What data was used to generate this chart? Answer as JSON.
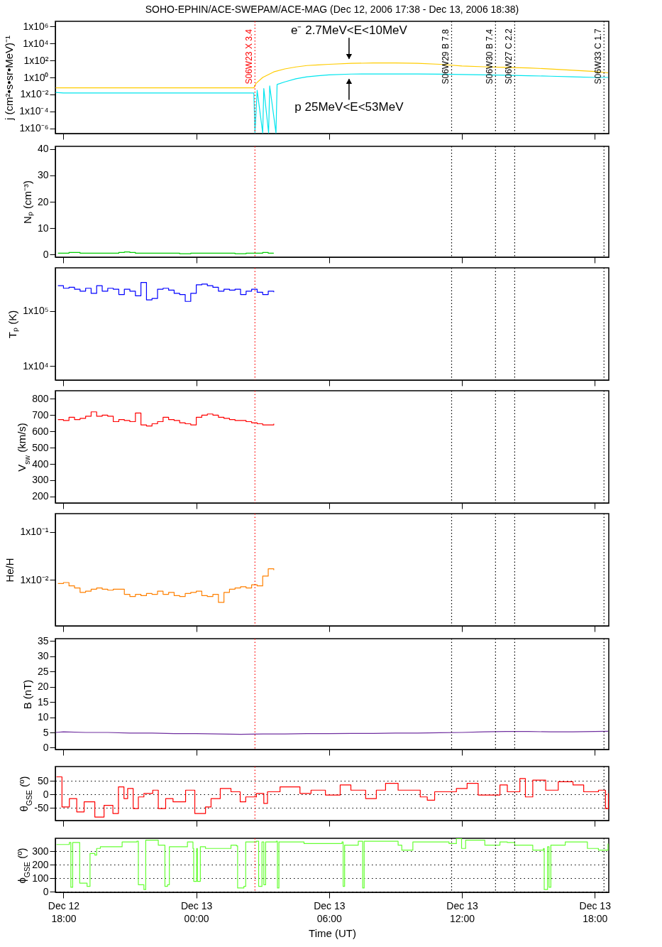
{
  "chart_data": [
    {
      "type": "line",
      "title": "SOHO-EPHIN/ACE-SWEPAM/ACE-MAG (Dec 12, 2006 17:38 - Dec 13, 2006 18:38)",
      "ylabel": "j (cm²•s•sr•MeV)⁻¹",
      "log": true,
      "tick_labels": "y",
      "xlim": [
        "2006-12-12T17:38",
        "2006-12-13T18:38"
      ],
      "xticks": [
        {
          "value": "2006-12-12T18:00",
          "label": null
        },
        {
          "value": "2006-12-13T00:00",
          "label": null
        },
        {
          "value": "2006-12-13T06:00",
          "label": null
        },
        {
          "value": "2006-12-13T12:00",
          "label": null
        },
        {
          "value": "2006-12-13T18:00",
          "label": null
        }
      ],
      "ylim": [
        2.5e-07,
        4000000
      ],
      "yticks": [
        {
          "value": 1e-06,
          "label": "1x10⁻⁶"
        },
        {
          "value": 0.0001,
          "label": "1x10⁻⁴"
        },
        {
          "value": 0.01,
          "label": "1x10⁻²"
        },
        {
          "value": 1,
          "label": "1x10⁰"
        },
        {
          "value": 100,
          "label": "1x10²"
        },
        {
          "value": 10000,
          "label": "1x10⁴"
        },
        {
          "value": 1000000,
          "label": "1x10⁶"
        }
      ],
      "series": [
        {
          "color": "#ffcc00",
          "x": [
            "2006-12-12T17:39",
            "2006-12-12T18:00",
            "2006-12-12T19:00",
            "2006-12-12T20:00",
            "2006-12-12T21:00",
            "2006-12-12T22:00",
            "2006-12-12T23:00",
            "2006-12-13T00:00",
            "2006-12-13T01:00",
            "2006-12-13T02:00",
            "2006-12-13T02:36",
            "2006-12-13T02:42",
            "2006-12-13T03:00",
            "2006-12-13T03:30",
            "2006-12-13T04:00",
            "2006-12-13T04:30",
            "2006-12-13T05:00",
            "2006-12-13T05:30",
            "2006-12-13T06:00",
            "2006-12-13T07:00",
            "2006-12-13T08:00",
            "2006-12-13T09:00",
            "2006-12-13T10:00",
            "2006-12-13T11:00",
            "2006-12-13T12:00",
            "2006-12-13T13:00",
            "2006-12-13T14:00",
            "2006-12-13T15:00",
            "2006-12-13T16:00",
            "2006-12-13T17:00",
            "2006-12-13T18:00",
            "2006-12-13T18:36"
          ],
          "values": [
            0.06,
            0.06,
            0.06,
            0.06,
            0.06,
            0.06,
            0.06,
            0.06,
            0.06,
            0.06,
            0.06,
            0.2,
            1,
            4.5,
            10,
            17,
            25,
            30,
            35,
            45,
            50,
            50,
            45,
            35,
            22,
            18,
            15,
            13,
            10,
            7,
            5,
            3.5
          ]
        },
        {
          "color": "#00e5ee",
          "x": [
            "2006-12-12T17:39",
            "2006-12-12T18:00",
            "2006-12-12T19:00",
            "2006-12-12T20:00",
            "2006-12-12T21:00",
            "2006-12-12T22:00",
            "2006-12-12T23:00",
            "2006-12-13T00:00",
            "2006-12-13T01:00",
            "2006-12-13T02:00",
            "2006-12-13T02:36",
            "2006-12-13T02:39",
            "2006-12-13T02:45",
            "2006-12-13T03:00",
            "2006-12-13T03:03",
            "2006-12-13T03:16",
            "2006-12-13T03:19",
            "2006-12-13T03:36",
            "2006-12-13T03:39",
            "2006-12-13T04:00",
            "2006-12-13T04:30",
            "2006-12-13T05:00",
            "2006-12-13T05:30",
            "2006-12-13T06:00",
            "2006-12-13T07:00",
            "2006-12-13T08:00",
            "2006-12-13T09:00",
            "2006-12-13T10:00",
            "2006-12-13T11:00",
            "2006-12-13T12:00",
            "2006-12-13T13:00",
            "2006-12-13T14:00",
            "2006-12-13T15:00",
            "2006-12-13T16:00",
            "2006-12-13T17:00",
            "2006-12-13T18:00",
            "2006-12-13T18:36"
          ],
          "values": [
            0.017,
            0.015,
            0.015,
            0.015,
            0.015,
            0.015,
            0.015,
            0.015,
            0.015,
            0.015,
            0.015,
            3e-07,
            0.03,
            3e-07,
            0.05,
            3e-07,
            0.1,
            3e-07,
            0.15,
            0.3,
            0.7,
            1.2,
            1.6,
            2,
            2.5,
            2.6,
            2.6,
            2.6,
            2.4,
            2.2,
            2,
            1.8,
            1.6,
            1.4,
            1.2,
            1,
            1
          ]
        }
      ],
      "ref_lines": [
        {
          "axis": "x",
          "value": "2006-12-13T02:39",
          "label": "S06W23 X 3.4",
          "color": "#ff0000",
          "line_style": "dotted"
        },
        {
          "axis": "x",
          "value": "2006-12-13T11:32",
          "label": "S06W29 B 7.8",
          "color": "#000000",
          "line_style": "dotted"
        },
        {
          "axis": "x",
          "value": "2006-12-13T13:31",
          "label": "S06W30 B 7.4",
          "color": "#000000",
          "line_style": "dotted"
        },
        {
          "axis": "x",
          "value": "2006-12-13T14:23",
          "label": "S06W27 C 2.2",
          "color": "#000000",
          "line_style": "dotted"
        },
        {
          "axis": "x",
          "value": "2006-12-13T18:25",
          "label": "S06W33 C 1.7",
          "color": "#000000",
          "line_style": "dotted"
        }
      ],
      "annotations": [
        {
          "text": "e⁻ 2.7MeV<E<10MeV",
          "x": "2006-12-13T06:54",
          "y": 45
        },
        {
          "text": "p 25MeV<E<53MeV",
          "x": "2006-12-13T06:54",
          "y": 2.3
        }
      ]
    },
    {
      "type": "step",
      "ylabel": "Nₚ (cm⁻³)",
      "tick_labels": "y",
      "xlim": [
        "2006-12-12T17:38",
        "2006-12-13T18:38"
      ],
      "xticks": [
        {
          "value": "2006-12-12T18:00",
          "label": null
        },
        {
          "value": "2006-12-13T00:00",
          "label": null
        },
        {
          "value": "2006-12-13T06:00",
          "label": null
        },
        {
          "value": "2006-12-13T12:00",
          "label": null
        },
        {
          "value": "2006-12-13T18:00",
          "label": null
        }
      ],
      "ylim": [
        -1,
        41
      ],
      "yticks": [
        0,
        10,
        20,
        30,
        40
      ],
      "series": [
        {
          "color": "#00cc00",
          "x": [
            "2006-12-12T17:45",
            "2006-12-12T18:00",
            "2006-12-12T18:15",
            "2006-12-12T18:30",
            "2006-12-12T18:45",
            "2006-12-12T19:00",
            "2006-12-12T19:15",
            "2006-12-12T19:30",
            "2006-12-12T19:45",
            "2006-12-12T20:00",
            "2006-12-12T20:15",
            "2006-12-12T20:30",
            "2006-12-12T20:45",
            "2006-12-12T21:00",
            "2006-12-12T21:15",
            "2006-12-12T21:30",
            "2006-12-12T21:45",
            "2006-12-12T22:00",
            "2006-12-12T22:15",
            "2006-12-12T22:30",
            "2006-12-12T22:45",
            "2006-12-12T23:00",
            "2006-12-12T23:15",
            "2006-12-12T23:30",
            "2006-12-12T23:45",
            "2006-12-13T00:00",
            "2006-12-13T00:15",
            "2006-12-13T00:30",
            "2006-12-13T00:45",
            "2006-12-13T01:00",
            "2006-12-13T01:15",
            "2006-12-13T01:30",
            "2006-12-13T01:45",
            "2006-12-13T02:00",
            "2006-12-13T02:15",
            "2006-12-13T02:30",
            "2006-12-13T02:45",
            "2006-12-13T03:00",
            "2006-12-13T03:15",
            "2006-12-13T03:30"
          ],
          "values": [
            0.5,
            0.5,
            0.8,
            0.8,
            0.5,
            0.5,
            0.5,
            0.5,
            0.5,
            0.5,
            0.5,
            0.8,
            1,
            0.8,
            0.5,
            0.5,
            0.5,
            0.5,
            0.5,
            0.5,
            0.5,
            0.5,
            0.3,
            0.3,
            0.5,
            0.5,
            0.5,
            0.5,
            0.5,
            0.5,
            0.5,
            0.5,
            0.3,
            0.3,
            0.5,
            0.5,
            0.5,
            0.8,
            0.5,
            0.5
          ]
        }
      ],
      "ref_lines": [
        {
          "axis": "x",
          "value": "2006-12-13T02:39",
          "color": "#ff0000",
          "line_style": "dotted"
        },
        {
          "axis": "x",
          "value": "2006-12-13T11:32",
          "color": "#000000",
          "line_style": "dotted"
        },
        {
          "axis": "x",
          "value": "2006-12-13T13:31",
          "color": "#000000",
          "line_style": "dotted"
        },
        {
          "axis": "x",
          "value": "2006-12-13T14:23",
          "color": "#000000",
          "line_style": "dotted"
        },
        {
          "axis": "x",
          "value": "2006-12-13T18:25",
          "color": "#000000",
          "line_style": "dotted"
        }
      ]
    },
    {
      "type": "step",
      "ylabel": "Tₚ (K)",
      "log": true,
      "tick_labels": "y",
      "xlim": [
        "2006-12-12T17:38",
        "2006-12-13T18:38"
      ],
      "xticks": [
        {
          "value": "2006-12-12T18:00",
          "label": null
        },
        {
          "value": "2006-12-13T00:00",
          "label": null
        },
        {
          "value": "2006-12-13T06:00",
          "label": null
        },
        {
          "value": "2006-12-13T12:00",
          "label": null
        },
        {
          "value": "2006-12-13T18:00",
          "label": null
        }
      ],
      "ylim": [
        5600,
        610000
      ],
      "yticks": [
        {
          "value": 10000,
          "label": "1x10⁴"
        },
        {
          "value": 100000,
          "label": "1x10⁵"
        }
      ],
      "series": [
        {
          "color": "#0000ff",
          "x": [
            "2006-12-12T17:45",
            "2006-12-12T18:00",
            "2006-12-12T18:15",
            "2006-12-12T18:30",
            "2006-12-12T18:45",
            "2006-12-12T19:00",
            "2006-12-12T19:15",
            "2006-12-12T19:30",
            "2006-12-12T19:45",
            "2006-12-12T20:00",
            "2006-12-12T20:15",
            "2006-12-12T20:30",
            "2006-12-12T20:45",
            "2006-12-12T21:00",
            "2006-12-12T21:15",
            "2006-12-12T21:30",
            "2006-12-12T21:45",
            "2006-12-12T22:00",
            "2006-12-12T22:15",
            "2006-12-12T22:30",
            "2006-12-12T22:45",
            "2006-12-12T23:00",
            "2006-12-12T23:15",
            "2006-12-12T23:30",
            "2006-12-12T23:45",
            "2006-12-13T00:00",
            "2006-12-13T00:15",
            "2006-12-13T00:30",
            "2006-12-13T00:45",
            "2006-12-13T01:00",
            "2006-12-13T01:15",
            "2006-12-13T01:30",
            "2006-12-13T01:45",
            "2006-12-13T02:00",
            "2006-12-13T02:15",
            "2006-12-13T02:30",
            "2006-12-13T02:45",
            "2006-12-13T03:00",
            "2006-12-13T03:15",
            "2006-12-13T03:30"
          ],
          "values": [
            290000,
            260000,
            270000,
            250000,
            230000,
            260000,
            210000,
            290000,
            230000,
            260000,
            250000,
            200000,
            250000,
            230000,
            190000,
            330000,
            160000,
            170000,
            250000,
            260000,
            240000,
            210000,
            200000,
            150000,
            210000,
            300000,
            310000,
            290000,
            270000,
            230000,
            250000,
            240000,
            250000,
            200000,
            230000,
            250000,
            220000,
            200000,
            230000,
            220000
          ]
        }
      ],
      "ref_lines": [
        {
          "axis": "x",
          "value": "2006-12-13T02:39",
          "color": "#ff0000",
          "line_style": "dotted"
        },
        {
          "axis": "x",
          "value": "2006-12-13T11:32",
          "color": "#000000",
          "line_style": "dotted"
        },
        {
          "axis": "x",
          "value": "2006-12-13T13:31",
          "color": "#000000",
          "line_style": "dotted"
        },
        {
          "axis": "x",
          "value": "2006-12-13T14:23",
          "color": "#000000",
          "line_style": "dotted"
        },
        {
          "axis": "x",
          "value": "2006-12-13T18:25",
          "color": "#000000",
          "line_style": "dotted"
        }
      ]
    },
    {
      "type": "step",
      "ylabel": "V$_{sw}$ (km/s)",
      "tick_labels": "y",
      "xlim": [
        "2006-12-12T17:38",
        "2006-12-13T18:38"
      ],
      "xticks": [
        {
          "value": "2006-12-12T18:00",
          "label": null
        },
        {
          "value": "2006-12-13T00:00",
          "label": null
        },
        {
          "value": "2006-12-13T06:00",
          "label": null
        },
        {
          "value": "2006-12-13T12:00",
          "label": null
        },
        {
          "value": "2006-12-13T18:00",
          "label": null
        }
      ],
      "ylim": [
        160,
        850
      ],
      "yticks": [
        200,
        300,
        400,
        500,
        600,
        700,
        800
      ],
      "series": [
        {
          "color": "#ff0000",
          "x": [
            "2006-12-12T17:45",
            "2006-12-12T18:00",
            "2006-12-12T18:15",
            "2006-12-12T18:30",
            "2006-12-12T18:45",
            "2006-12-12T19:00",
            "2006-12-12T19:15",
            "2006-12-12T19:30",
            "2006-12-12T19:45",
            "2006-12-12T20:00",
            "2006-12-12T20:15",
            "2006-12-12T20:30",
            "2006-12-12T20:45",
            "2006-12-12T21:00",
            "2006-12-12T21:15",
            "2006-12-12T21:30",
            "2006-12-12T21:45",
            "2006-12-12T22:00",
            "2006-12-12T22:15",
            "2006-12-12T22:30",
            "2006-12-12T22:45",
            "2006-12-12T23:00",
            "2006-12-12T23:15",
            "2006-12-12T23:30",
            "2006-12-12T23:45",
            "2006-12-13T00:00",
            "2006-12-13T00:15",
            "2006-12-13T00:30",
            "2006-12-13T00:45",
            "2006-12-13T01:00",
            "2006-12-13T01:15",
            "2006-12-13T01:30",
            "2006-12-13T01:45",
            "2006-12-13T02:00",
            "2006-12-13T02:15",
            "2006-12-13T02:30",
            "2006-12-13T02:45",
            "2006-12-13T03:00",
            "2006-12-13T03:15",
            "2006-12-13T03:30"
          ],
          "values": [
            673,
            667,
            687,
            673,
            680,
            693,
            720,
            693,
            700,
            693,
            660,
            673,
            667,
            660,
            713,
            640,
            633,
            647,
            660,
            687,
            673,
            667,
            653,
            647,
            640,
            687,
            700,
            707,
            700,
            687,
            680,
            673,
            667,
            667,
            660,
            653,
            647,
            640,
            640,
            647
          ]
        }
      ],
      "ref_lines": [
        {
          "axis": "x",
          "value": "2006-12-13T02:39",
          "color": "#ff0000",
          "line_style": "dotted"
        },
        {
          "axis": "x",
          "value": "2006-12-13T11:32",
          "color": "#000000",
          "line_style": "dotted"
        },
        {
          "axis": "x",
          "value": "2006-12-13T13:31",
          "color": "#000000",
          "line_style": "dotted"
        },
        {
          "axis": "x",
          "value": "2006-12-13T14:23",
          "color": "#000000",
          "line_style": "dotted"
        },
        {
          "axis": "x",
          "value": "2006-12-13T18:25",
          "color": "#000000",
          "line_style": "dotted"
        }
      ]
    },
    {
      "type": "step",
      "ylabel": "He/H",
      "log": true,
      "tick_labels": "y",
      "xlim": [
        "2006-12-12T17:38",
        "2006-12-13T18:38"
      ],
      "xticks": [
        {
          "value": "2006-12-12T18:00",
          "label": null
        },
        {
          "value": "2006-12-13T00:00",
          "label": null
        },
        {
          "value": "2006-12-13T06:00",
          "label": null
        },
        {
          "value": "2006-12-13T12:00",
          "label": null
        },
        {
          "value": "2006-12-13T18:00",
          "label": null
        }
      ],
      "ylim": [
        0.0011,
        0.24
      ],
      "yticks": [
        {
          "value": 0.01,
          "label": "1x10⁻²"
        },
        {
          "value": 0.1,
          "label": "1x10⁻¹"
        }
      ],
      "series": [
        {
          "color": "#ff8000",
          "x": [
            "2006-12-12T17:45",
            "2006-12-12T18:00",
            "2006-12-12T18:15",
            "2006-12-12T18:30",
            "2006-12-12T18:45",
            "2006-12-12T19:00",
            "2006-12-12T19:15",
            "2006-12-12T19:30",
            "2006-12-12T19:45",
            "2006-12-12T20:00",
            "2006-12-12T20:15",
            "2006-12-12T20:30",
            "2006-12-12T20:45",
            "2006-12-12T21:00",
            "2006-12-12T21:15",
            "2006-12-12T21:30",
            "2006-12-12T21:45",
            "2006-12-12T22:00",
            "2006-12-12T22:15",
            "2006-12-12T22:30",
            "2006-12-12T22:45",
            "2006-12-12T23:00",
            "2006-12-12T23:15",
            "2006-12-12T23:30",
            "2006-12-12T23:45",
            "2006-12-13T00:00",
            "2006-12-13T00:15",
            "2006-12-13T00:30",
            "2006-12-13T00:45",
            "2006-12-13T01:00",
            "2006-12-13T01:15",
            "2006-12-13T01:30",
            "2006-12-13T01:45",
            "2006-12-13T02:00",
            "2006-12-13T02:15",
            "2006-12-13T02:30",
            "2006-12-13T02:45",
            "2006-12-13T03:00",
            "2006-12-13T03:15",
            "2006-12-13T03:30"
          ],
          "values": [
            0.0084,
            0.0088,
            0.0075,
            0.0068,
            0.0055,
            0.0058,
            0.0064,
            0.0068,
            0.0064,
            0.0061,
            0.0064,
            0.0064,
            0.005,
            0.0045,
            0.005,
            0.0047,
            0.0052,
            0.005,
            0.0058,
            0.005,
            0.0055,
            0.0047,
            0.0045,
            0.0052,
            0.0055,
            0.0058,
            0.0047,
            0.0045,
            0.005,
            0.0034,
            0.0055,
            0.0064,
            0.0068,
            0.0072,
            0.0068,
            0.0079,
            0.0075,
            0.012,
            0.017,
            0.016
          ]
        }
      ],
      "ref_lines": [
        {
          "axis": "x",
          "value": "2006-12-13T02:39",
          "color": "#ff0000",
          "line_style": "dotted"
        },
        {
          "axis": "x",
          "value": "2006-12-13T11:32",
          "color": "#000000",
          "line_style": "dotted"
        },
        {
          "axis": "x",
          "value": "2006-12-13T13:31",
          "color": "#000000",
          "line_style": "dotted"
        },
        {
          "axis": "x",
          "value": "2006-12-13T14:23",
          "color": "#000000",
          "line_style": "dotted"
        },
        {
          "axis": "x",
          "value": "2006-12-13T18:25",
          "color": "#000000",
          "line_style": "dotted"
        }
      ]
    },
    {
      "type": "line",
      "ylabel": "B (nT)",
      "tick_labels": "y",
      "xlim": [
        "2006-12-12T17:38",
        "2006-12-13T18:38"
      ],
      "xticks": [
        {
          "value": "2006-12-12T18:00",
          "label": null
        },
        {
          "value": "2006-12-13T00:00",
          "label": null
        },
        {
          "value": "2006-12-13T06:00",
          "label": null
        },
        {
          "value": "2006-12-13T12:00",
          "label": null
        },
        {
          "value": "2006-12-13T18:00",
          "label": null
        }
      ],
      "ylim": [
        -0.6,
        35.8
      ],
      "yticks": [
        0,
        5,
        10,
        15,
        20,
        25,
        30,
        35
      ],
      "series": [
        {
          "color": "#7030a0",
          "x": [
            "2006-12-12T17:39",
            "2006-12-12T18:00",
            "2006-12-12T19:00",
            "2006-12-12T20:00",
            "2006-12-12T21:00",
            "2006-12-12T22:00",
            "2006-12-12T23:00",
            "2006-12-13T00:00",
            "2006-12-13T01:00",
            "2006-12-13T02:00",
            "2006-12-13T03:00",
            "2006-12-13T04:00",
            "2006-12-13T05:00",
            "2006-12-13T06:00",
            "2006-12-13T07:00",
            "2006-12-13T08:00",
            "2006-12-13T09:00",
            "2006-12-13T10:00",
            "2006-12-13T11:00",
            "2006-12-13T12:00",
            "2006-12-13T13:00",
            "2006-12-13T14:00",
            "2006-12-13T15:00",
            "2006-12-13T16:00",
            "2006-12-13T17:00",
            "2006-12-13T18:00",
            "2006-12-13T18:36"
          ],
          "values": [
            5,
            5.2,
            5,
            5,
            4.8,
            4.8,
            4.6,
            4.6,
            4.5,
            4.4,
            4.5,
            4.5,
            4.6,
            4.6,
            4.7,
            4.7,
            4.8,
            4.8,
            4.9,
            5,
            5.2,
            5.3,
            5.3,
            5.2,
            5.2,
            5.3,
            5.4
          ]
        }
      ],
      "ref_lines": [
        {
          "axis": "x",
          "value": "2006-12-13T02:39",
          "color": "#ff0000",
          "line_style": "dotted"
        },
        {
          "axis": "x",
          "value": "2006-12-13T11:32",
          "color": "#000000",
          "line_style": "dotted"
        },
        {
          "axis": "x",
          "value": "2006-12-13T13:31",
          "color": "#000000",
          "line_style": "dotted"
        },
        {
          "axis": "x",
          "value": "2006-12-13T14:23",
          "color": "#000000",
          "line_style": "dotted"
        },
        {
          "axis": "x",
          "value": "2006-12-13T18:25",
          "color": "#000000",
          "line_style": "dotted"
        }
      ]
    },
    {
      "type": "step",
      "ylabel": "θ$_{GSE}$ (º)",
      "grid": "y",
      "tick_labels": "y",
      "xlim": [
        "2006-12-12T17:38",
        "2006-12-13T18:38"
      ],
      "xticks": [
        {
          "value": "2006-12-12T18:00",
          "label": null
        },
        {
          "value": "2006-12-13T00:00",
          "label": null
        },
        {
          "value": "2006-12-13T06:00",
          "label": null
        },
        {
          "value": "2006-12-13T12:00",
          "label": null
        },
        {
          "value": "2006-12-13T18:00",
          "label": null
        }
      ],
      "ylim": [
        -96,
        103
      ],
      "yticks": [
        -50,
        0,
        50
      ],
      "series": [
        {
          "color": "#ff0000",
          "x": [
            "2006-12-12T17:41",
            "2006-12-12T17:56",
            "2006-12-12T18:16",
            "2006-12-12T18:36",
            "2006-12-12T18:56",
            "2006-12-12T19:25",
            "2006-12-12T19:50",
            "2006-12-12T20:14",
            "2006-12-12T20:29",
            "2006-12-12T20:44",
            "2006-12-12T20:54",
            "2006-12-12T21:09",
            "2006-12-12T21:23",
            "2006-12-12T21:38",
            "2006-12-12T22:02",
            "2006-12-12T22:17",
            "2006-12-12T22:37",
            "2006-12-12T22:57",
            "2006-12-12T23:31",
            "2006-12-12T23:56",
            "2006-12-13T00:25",
            "2006-12-13T00:40",
            "2006-12-13T01:05",
            "2006-12-13T01:34",
            "2006-12-13T01:59",
            "2006-12-13T02:14",
            "2006-12-13T02:43",
            "2006-12-13T03:03",
            "2006-12-13T03:13",
            "2006-12-13T03:47",
            "2006-12-13T04:41",
            "2006-12-13T05:11",
            "2006-12-13T05:50",
            "2006-12-13T06:30",
            "2006-12-13T06:59",
            "2006-12-13T07:39",
            "2006-12-13T08:08",
            "2006-12-13T08:33",
            "2006-12-13T09:07",
            "2006-12-13T10:07",
            "2006-12-13T10:26",
            "2006-12-13T10:46",
            "2006-12-13T11:45",
            "2006-12-13T12:14",
            "2006-12-13T12:44",
            "2006-12-13T13:43",
            "2006-12-13T14:03",
            "2006-12-13T14:37",
            "2006-12-13T14:52",
            "2006-12-13T15:12",
            "2006-12-13T15:47",
            "2006-12-13T16:21",
            "2006-12-13T17:01",
            "2006-12-13T17:30",
            "2006-12-13T18:10",
            "2006-12-13T18:29",
            "2006-12-13T18:37"
          ],
          "values": [
            65,
            -46,
            -15,
            -64,
            -27,
            -83,
            -40,
            -70,
            28,
            -15,
            22,
            -52,
            -9,
            4,
            16,
            -52,
            -15,
            -27,
            16,
            -70,
            -46,
            -15,
            22,
            10,
            -27,
            -9,
            4,
            -33,
            10,
            28,
            4,
            16,
            -2,
            35,
            16,
            -15,
            16,
            41,
            16,
            -9,
            -21,
            10,
            22,
            41,
            -2,
            35,
            10,
            59,
            -9,
            53,
            16,
            47,
            35,
            10,
            16,
            -52,
            4
          ]
        }
      ],
      "ref_lines": [
        {
          "axis": "x",
          "value": "2006-12-13T02:39",
          "color": "#ff0000",
          "line_style": "dotted"
        },
        {
          "axis": "x",
          "value": "2006-12-13T11:32",
          "color": "#000000",
          "line_style": "dotted"
        },
        {
          "axis": "x",
          "value": "2006-12-13T13:31",
          "color": "#000000",
          "line_style": "dotted"
        },
        {
          "axis": "x",
          "value": "2006-12-13T14:23",
          "color": "#000000",
          "line_style": "dotted"
        },
        {
          "axis": "x",
          "value": "2006-12-13T18:25",
          "color": "#000000",
          "line_style": "dotted"
        }
      ]
    },
    {
      "type": "step",
      "ylabel": "ϕ$_{GSE}$ (º)",
      "xlabel": "Time (UT)",
      "grid": "y",
      "xlim": [
        "2006-12-12T17:38",
        "2006-12-13T18:38"
      ],
      "xticks": [
        {
          "value": "2006-12-12T18:00",
          "label": "Dec 12\n18:00"
        },
        {
          "value": "2006-12-13T00:00",
          "label": "Dec 13\n00:00"
        },
        {
          "value": "2006-12-13T06:00",
          "label": "Dec 13\n06:00"
        },
        {
          "value": "2006-12-13T12:00",
          "label": "Dec 13\n12:00"
        },
        {
          "value": "2006-12-13T18:00",
          "label": "Dec 13\n18:00"
        }
      ],
      "ylim": [
        -5,
        395
      ],
      "yticks": [
        0,
        100,
        200,
        300
      ],
      "series": [
        {
          "color": "#66ff33",
          "x": [
            "2006-12-12T17:41",
            "2006-12-12T18:16",
            "2006-12-12T18:20",
            "2006-12-12T18:25",
            "2006-12-12T18:44",
            "2006-12-12T19:04",
            "2006-12-12T19:12",
            "2006-12-12T19:25",
            "2006-12-12T19:30",
            "2006-12-12T19:40",
            "2006-12-12T20:39",
            "2006-12-12T21:19",
            "2006-12-12T21:23",
            "2006-12-12T21:38",
            "2006-12-12T21:43",
            "2006-12-12T22:17",
            "2006-12-12T22:33",
            "2006-12-12T22:35",
            "2006-12-12T22:42",
            "2006-12-12T22:47",
            "2006-12-12T23:36",
            "2006-12-12T23:51",
            "2006-12-12T23:53",
            "2006-12-13T00:01",
            "2006-12-13T00:03",
            "2006-12-13T00:11",
            "2006-12-13T00:25",
            "2006-12-13T01:34",
            "2006-12-13T01:49",
            "2006-12-13T01:52",
            "2006-12-13T02:09",
            "2006-12-13T02:14",
            "2006-12-13T02:43",
            "2006-12-13T02:49",
            "2006-12-13T02:58",
            "2006-12-13T03:03",
            "2006-12-13T03:08",
            "2006-12-13T03:37",
            "2006-12-13T03:40",
            "2006-12-13T03:44",
            "2006-12-13T04:52",
            "2006-12-13T06:35",
            "2006-12-13T06:38",
            "2006-12-13T06:42",
            "2006-12-13T07:19",
            "2006-12-13T07:31",
            "2006-12-13T07:35",
            "2006-12-13T09:07",
            "2006-12-13T09:17",
            "2006-12-13T09:47",
            "2006-12-13T11:25",
            "2006-12-13T11:45",
            "2006-12-13T11:59",
            "2006-12-13T12:10",
            "2006-12-13T13:02",
            "2006-12-13T13:43",
            "2006-12-13T14:03",
            "2006-12-13T14:23",
            "2006-12-13T15:12",
            "2006-12-13T15:41",
            "2006-12-13T15:43",
            "2006-12-13T15:52",
            "2006-12-13T15:56",
            "2006-12-13T16:01",
            "2006-12-13T16:40",
            "2006-12-13T17:40",
            "2006-12-13T18:10",
            "2006-12-13T18:36"
          ],
          "values": [
            349,
            364,
            32,
            364,
            63,
            39,
            283,
            271,
            320,
            332,
            368,
            373,
            51,
            15,
            381,
            344,
            344,
            39,
            51,
            332,
            368,
            320,
            76,
            320,
            76,
            332,
            320,
            344,
            339,
            27,
            39,
            368,
            373,
            39,
            368,
            51,
            368,
            373,
            27,
            368,
            356,
            368,
            39,
            344,
            373,
            27,
            373,
            344,
            307,
            368,
            356,
            393,
            320,
            381,
            344,
            368,
            364,
            344,
            307,
            320,
            15,
            332,
            32,
            344,
            368,
            320,
            307,
            356
          ]
        }
      ],
      "ref_lines": [
        {
          "axis": "x",
          "value": "2006-12-13T02:39",
          "color": "#ff0000",
          "line_style": "dotted"
        },
        {
          "axis": "x",
          "value": "2006-12-13T11:32",
          "color": "#000000",
          "line_style": "dotted"
        },
        {
          "axis": "x",
          "value": "2006-12-13T13:31",
          "color": "#000000",
          "line_style": "dotted"
        },
        {
          "axis": "x",
          "value": "2006-12-13T14:23",
          "color": "#000000",
          "line_style": "dotted"
        },
        {
          "axis": "x",
          "value": "2006-12-13T18:25",
          "color": "#000000",
          "line_style": "dotted"
        }
      ]
    }
  ]
}
